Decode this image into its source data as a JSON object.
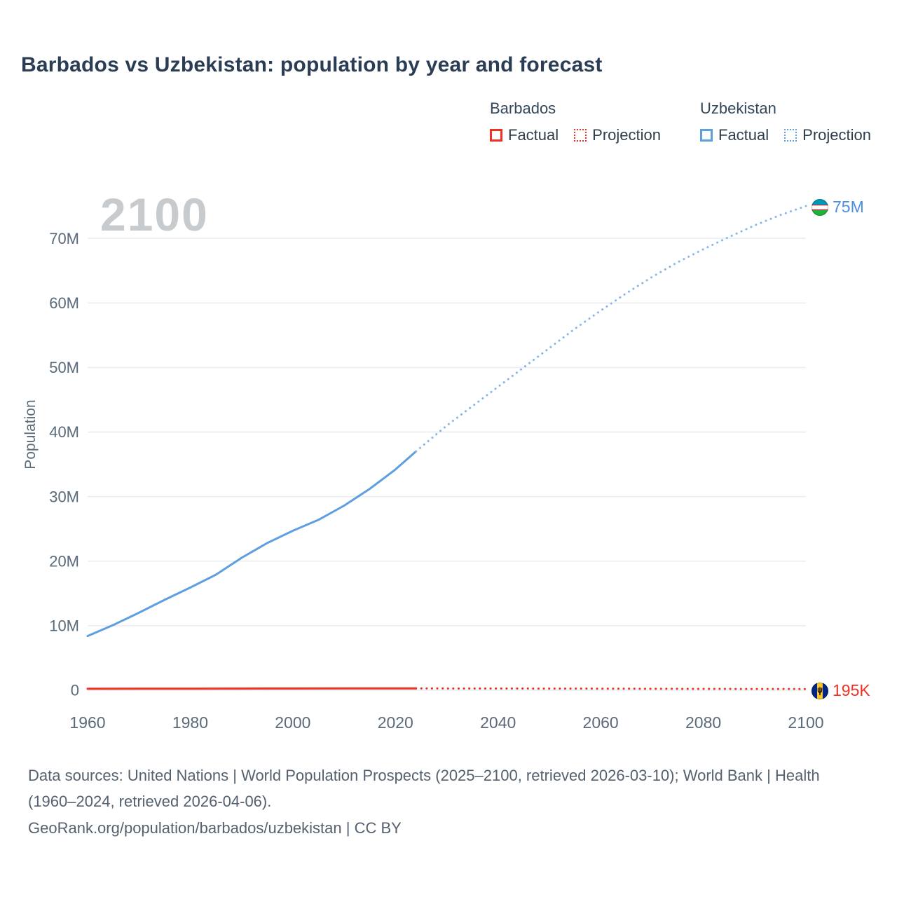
{
  "title": "Barbados vs Uzbekistan: population by year and forecast",
  "legend": {
    "groups": [
      {
        "name": "Barbados",
        "color": "#ee3224",
        "items": [
          {
            "label": "Factual",
            "style": "solid"
          },
          {
            "label": "Projection",
            "style": "dotted"
          }
        ]
      },
      {
        "name": "Uzbekistan",
        "color": "#5f9fe0",
        "items": [
          {
            "label": "Factual",
            "style": "solid"
          },
          {
            "label": "Projection",
            "style": "dotted"
          }
        ]
      }
    ]
  },
  "watermark": "2100",
  "ylabel": "Population",
  "end_labels": [
    {
      "series": "Uzbekistan",
      "value": "75M",
      "flag": "uzbekistan-flag"
    },
    {
      "series": "Barbados",
      "value": "195K",
      "flag": "barbados-flag"
    }
  ],
  "footer": {
    "sources": "Data sources: United Nations | World Population Prospects (2025–2100, retrieved 2026-03-10); World Bank | Health (1960–2024, retrieved 2026-04-06).",
    "attribution": "GeoRank.org/population/barbados/uzbekistan | CC BY"
  },
  "chart_data": {
    "type": "line",
    "title": "Barbados vs Uzbekistan: population by year and forecast",
    "xlabel": "",
    "ylabel": "Population",
    "y_unit": "millions",
    "xlim": [
      1960,
      2100
    ],
    "ylim": [
      0,
      75
    ],
    "grid": "horizontal",
    "legend_position": "top-right",
    "x_ticks": [
      1960,
      1980,
      2000,
      2020,
      2040,
      2060,
      2080,
      2100
    ],
    "y_ticks": [
      {
        "value": 0,
        "label": "0"
      },
      {
        "value": 10,
        "label": "10M"
      },
      {
        "value": 20,
        "label": "20M"
      },
      {
        "value": 30,
        "label": "30M"
      },
      {
        "value": 40,
        "label": "40M"
      },
      {
        "value": 50,
        "label": "50M"
      },
      {
        "value": 60,
        "label": "60M"
      },
      {
        "value": 70,
        "label": "70M"
      }
    ],
    "series": [
      {
        "name": "Uzbekistan",
        "color": "#5f9fe0",
        "projection_color": "#85b6ea",
        "end_label": "75M",
        "factual": {
          "x": [
            1960,
            1965,
            1970,
            1975,
            1980,
            1985,
            1990,
            1995,
            2000,
            2005,
            2010,
            2015,
            2020,
            2024
          ],
          "y": [
            8.4,
            10.1,
            12.0,
            14.0,
            15.9,
            17.9,
            20.5,
            22.8,
            24.7,
            26.4,
            28.6,
            31.2,
            34.2,
            37.0
          ]
        },
        "projection": {
          "x": [
            2024,
            2030,
            2035,
            2040,
            2045,
            2050,
            2055,
            2060,
            2065,
            2070,
            2075,
            2080,
            2085,
            2090,
            2095,
            2100
          ],
          "y": [
            37.0,
            41.0,
            44.0,
            47.0,
            50.0,
            53.0,
            56.0,
            58.8,
            61.5,
            64.0,
            66.3,
            68.3,
            70.2,
            72.0,
            73.6,
            75.0
          ]
        }
      },
      {
        "name": "Barbados",
        "color": "#ee3224",
        "projection_color": "#ee3224",
        "end_label": "195K",
        "factual": {
          "x": [
            1960,
            1970,
            1980,
            1990,
            2000,
            2010,
            2020,
            2024
          ],
          "y": [
            0.23,
            0.24,
            0.25,
            0.26,
            0.27,
            0.28,
            0.28,
            0.28
          ]
        },
        "projection": {
          "x": [
            2024,
            2040,
            2060,
            2080,
            2100
          ],
          "y": [
            0.28,
            0.27,
            0.25,
            0.22,
            0.195
          ]
        }
      }
    ]
  }
}
